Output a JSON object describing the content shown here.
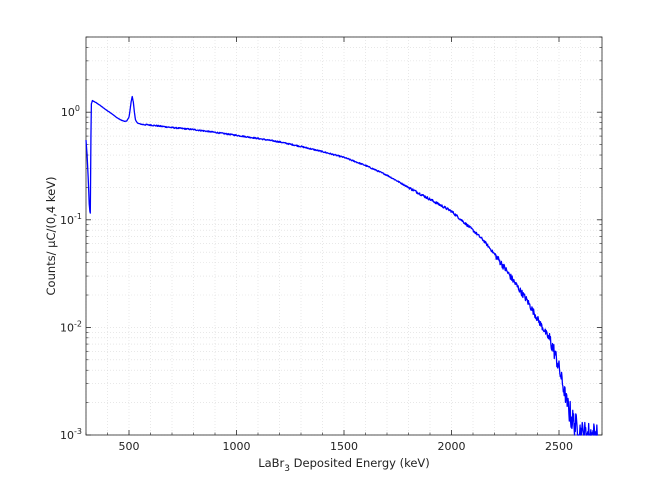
{
  "chart_data": {
    "type": "line",
    "title": "",
    "xlabel_parts": {
      "main": "LaBr",
      "sub": "3",
      "rest": " Deposited Energy (keV)"
    },
    "ylabel": "Counts/ μC/(0,4 keV)",
    "xlim": [
      300,
      2700
    ],
    "ylim": [
      0.001,
      5
    ],
    "yscale": "log",
    "grid": true,
    "x_ticks": [
      500,
      1000,
      1500,
      2000,
      2500
    ],
    "x_tick_labels": [
      "500",
      "1000",
      "1500",
      "2000",
      "2500"
    ],
    "y_ticks": [
      0.001,
      0.01,
      0.1,
      1
    ],
    "y_tick_labels": [
      {
        "base": "10",
        "exp": "-3"
      },
      {
        "base": "10",
        "exp": "-2"
      },
      {
        "base": "10",
        "exp": "-1"
      },
      {
        "base": "10",
        "exp": "0"
      }
    ],
    "series": [
      {
        "color": "#0000ff",
        "points": [
          [
            300,
            0.55
          ],
          [
            305,
            0.4
          ],
          [
            310,
            0.25
          ],
          [
            315,
            0.14
          ],
          [
            318,
            0.12
          ],
          [
            320,
            0.115
          ],
          [
            323,
            0.6
          ],
          [
            325,
            1.2
          ],
          [
            330,
            1.28
          ],
          [
            340,
            1.25
          ],
          [
            360,
            1.18
          ],
          [
            380,
            1.1
          ],
          [
            400,
            1.03
          ],
          [
            420,
            0.97
          ],
          [
            440,
            0.9
          ],
          [
            460,
            0.85
          ],
          [
            480,
            0.82
          ],
          [
            490,
            0.83
          ],
          [
            500,
            0.9
          ],
          [
            505,
            1.05
          ],
          [
            510,
            1.25
          ],
          [
            515,
            1.4
          ],
          [
            520,
            1.25
          ],
          [
            525,
            1.0
          ],
          [
            530,
            0.85
          ],
          [
            540,
            0.79
          ],
          [
            560,
            0.77
          ],
          [
            600,
            0.76
          ],
          [
            700,
            0.72
          ],
          [
            800,
            0.69
          ],
          [
            900,
            0.65
          ],
          [
            1000,
            0.61
          ],
          [
            1100,
            0.57
          ],
          [
            1200,
            0.53
          ],
          [
            1300,
            0.48
          ],
          [
            1400,
            0.43
          ],
          [
            1500,
            0.38
          ],
          [
            1600,
            0.32
          ],
          [
            1700,
            0.26
          ],
          [
            1800,
            0.2
          ],
          [
            1900,
            0.155
          ],
          [
            2000,
            0.12
          ],
          [
            2050,
            0.098
          ],
          [
            2100,
            0.08
          ],
          [
            2150,
            0.064
          ],
          [
            2200,
            0.048
          ],
          [
            2250,
            0.035
          ],
          [
            2300,
            0.025
          ],
          [
            2350,
            0.018
          ],
          [
            2400,
            0.012
          ],
          [
            2430,
            0.0095
          ],
          [
            2460,
            0.0075
          ],
          [
            2480,
            0.0058
          ],
          [
            2500,
            0.0042
          ],
          [
            2520,
            0.0028
          ],
          [
            2540,
            0.0019
          ],
          [
            2560,
            0.0014
          ],
          [
            2580,
            0.0012
          ],
          [
            2600,
            0.00105
          ],
          [
            2620,
            0.00102
          ],
          [
            2650,
            0.00101
          ],
          [
            2680,
            0.001
          ]
        ]
      }
    ]
  }
}
